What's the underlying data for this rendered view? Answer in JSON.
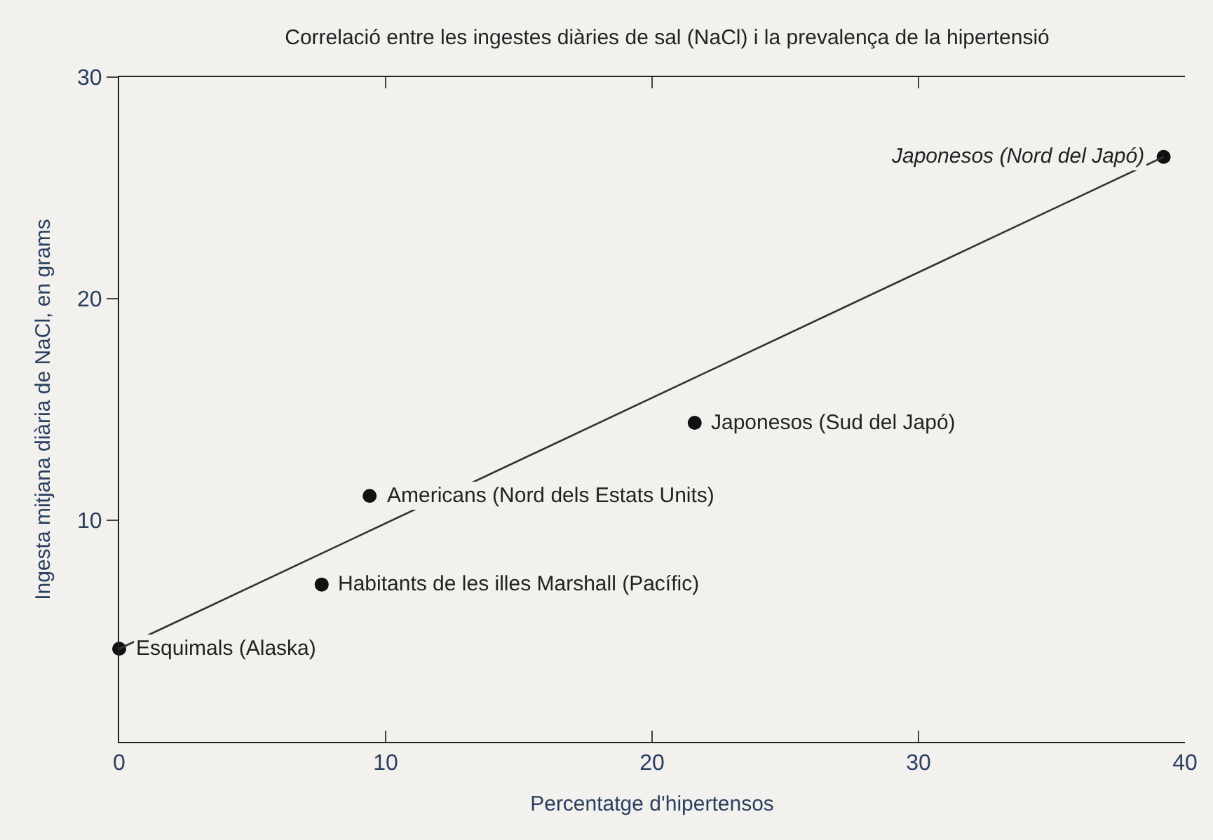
{
  "chart_data": {
    "type": "scatter",
    "title": "Correlació entre les ingestes diàries de sal (NaCl) i la prevalença de la hipertensió",
    "xlabel": "Percentatge d'hipertensos",
    "ylabel": "Ingesta mitjana diària de NaCl, en grams",
    "x": [
      0,
      7.6,
      9.4,
      21.6,
      39.2
    ],
    "series": [
      {
        "color": "#111111",
        "marker": "circle",
        "values": [
          4.2,
          7.1,
          11.1,
          14.4,
          26.4
        ]
      },
      {
        "type": "line",
        "color": "#333333",
        "x": [
          0,
          39.2
        ],
        "values": [
          4.2,
          26.4
        ]
      }
    ],
    "annotations": [
      {
        "text": "Esquimals (Alaska)",
        "x": 0,
        "y": 4.2
      },
      {
        "text": "Habitants de les illes Marshall (Pacífic)",
        "x": 7.6,
        "y": 7.1
      },
      {
        "text": "Americans (Nord dels Estats Units)",
        "x": 9.4,
        "y": 11.1
      },
      {
        "text": "Japonesos (Sud del Japó)",
        "x": 21.6,
        "y": 14.4
      },
      {
        "text": "Japonesos (Nord del Japó)",
        "x": 39.2,
        "y": 26.4
      }
    ],
    "xlim": [
      0,
      40
    ],
    "xticks": [
      0,
      10,
      20,
      30,
      40
    ],
    "ylim": [
      0,
      30
    ],
    "yticks": [
      10,
      20,
      30
    ],
    "grid": false
  }
}
